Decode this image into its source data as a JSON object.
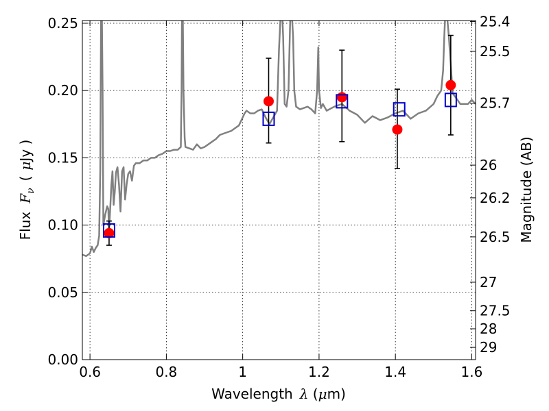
{
  "chart_data": {
    "type": "scatter",
    "xlabel": {
      "prefix": "Wavelength",
      "symbol": "λ",
      "unit_open": " (",
      "unit_mu": "μ",
      "unit_rest": "m)"
    },
    "ylabel": {
      "prefix": "Flux",
      "symbol": "F",
      "subscript": "ν",
      "unit_open": "(",
      "unit_mu": "μ",
      "unit_rest": "Jy )"
    },
    "y2label": "Magnitude (AB)",
    "xlim": [
      0.58,
      1.61
    ],
    "ylim": [
      0.0,
      0.252
    ],
    "x_ticks": [
      0.6,
      0.8,
      1.0,
      1.2,
      1.4,
      1.6
    ],
    "x_tick_labels": [
      "0.6",
      "0.8",
      "1",
      "1.2",
      "1.4",
      "1.6"
    ],
    "y_ticks": [
      0.0,
      0.05,
      0.1,
      0.15,
      0.2,
      0.25
    ],
    "y_tick_labels": [
      "0.00",
      "0.05",
      "0.10",
      "0.15",
      "0.20",
      "0.25"
    ],
    "y2_ticks": [
      25.4,
      25.5,
      25.7,
      26,
      26.2,
      26.5,
      27,
      27.5,
      28,
      29
    ],
    "y2_tick_labels": [
      "25.4",
      "25.5",
      "25.7",
      "26",
      "26.2",
      "26.5",
      "27",
      "27.5",
      "28",
      "29"
    ],
    "grid": true,
    "colors": {
      "model": "#808080",
      "observed": "#ff0000",
      "model_photometry": "#0000cc",
      "errorbar": "#000000"
    },
    "observed": {
      "x": [
        0.65,
        1.068,
        1.26,
        1.405,
        1.545
      ],
      "y": [
        0.094,
        0.192,
        0.195,
        0.171,
        0.204
      ],
      "yerr_low": [
        0.009,
        0.031,
        0.033,
        0.029,
        0.037
      ],
      "yerr_high": [
        0.009,
        0.032,
        0.035,
        0.03,
        0.037
      ]
    },
    "model_photometry": {
      "x": [
        0.65,
        1.068,
        1.26,
        1.41,
        1.545
      ],
      "y": [
        0.096,
        0.179,
        0.192,
        0.186,
        0.193
      ]
    },
    "model_spectrum": {
      "x": [
        0.58,
        0.59,
        0.6,
        0.605,
        0.61,
        0.615,
        0.62,
        0.624,
        0.627,
        0.629,
        0.63,
        0.631,
        0.633,
        0.635,
        0.64,
        0.645,
        0.648,
        0.65,
        0.653,
        0.656,
        0.659,
        0.662,
        0.665,
        0.668,
        0.672,
        0.676,
        0.68,
        0.684,
        0.688,
        0.692,
        0.696,
        0.7,
        0.705,
        0.71,
        0.715,
        0.72,
        0.73,
        0.74,
        0.75,
        0.76,
        0.77,
        0.78,
        0.79,
        0.8,
        0.81,
        0.82,
        0.83,
        0.838,
        0.84,
        0.841,
        0.843,
        0.845,
        0.848,
        0.85,
        0.86,
        0.87,
        0.88,
        0.89,
        0.9,
        0.91,
        0.92,
        0.93,
        0.94,
        0.95,
        0.96,
        0.97,
        0.98,
        0.99,
        1.0,
        1.005,
        1.01,
        1.02,
        1.03,
        1.04,
        1.05,
        1.06,
        1.07,
        1.08,
        1.09,
        1.095,
        1.1,
        1.103,
        1.106,
        1.11,
        1.115,
        1.12,
        1.125,
        1.128,
        1.132,
        1.135,
        1.14,
        1.15,
        1.16,
        1.17,
        1.18,
        1.19,
        1.195,
        1.198,
        1.2,
        1.205,
        1.21,
        1.22,
        1.24,
        1.26,
        1.28,
        1.3,
        1.32,
        1.34,
        1.36,
        1.38,
        1.4,
        1.42,
        1.44,
        1.46,
        1.48,
        1.5,
        1.51,
        1.52,
        1.525,
        1.528,
        1.531,
        1.534,
        1.54,
        1.55,
        1.56,
        1.57,
        1.58,
        1.59,
        1.6,
        1.61
      ],
      "y": [
        0.078,
        0.077,
        0.079,
        0.084,
        0.08,
        0.083,
        0.085,
        0.092,
        0.14,
        0.26,
        0.26,
        0.26,
        0.2,
        0.1,
        0.108,
        0.114,
        0.112,
        0.096,
        0.112,
        0.13,
        0.14,
        0.115,
        0.125,
        0.139,
        0.143,
        0.13,
        0.11,
        0.14,
        0.143,
        0.119,
        0.13,
        0.138,
        0.14,
        0.133,
        0.144,
        0.146,
        0.146,
        0.148,
        0.148,
        0.15,
        0.15,
        0.152,
        0.153,
        0.155,
        0.155,
        0.156,
        0.156,
        0.158,
        0.2,
        0.26,
        0.26,
        0.2,
        0.165,
        0.158,
        0.157,
        0.156,
        0.16,
        0.157,
        0.158,
        0.16,
        0.162,
        0.164,
        0.167,
        0.168,
        0.169,
        0.17,
        0.172,
        0.174,
        0.18,
        0.183,
        0.185,
        0.183,
        0.183,
        0.185,
        0.186,
        0.18,
        0.175,
        0.18,
        0.185,
        0.23,
        0.26,
        0.26,
        0.24,
        0.19,
        0.188,
        0.2,
        0.26,
        0.26,
        0.24,
        0.2,
        0.188,
        0.186,
        0.187,
        0.188,
        0.186,
        0.183,
        0.2,
        0.232,
        0.2,
        0.187,
        0.19,
        0.185,
        0.188,
        0.19,
        0.185,
        0.182,
        0.176,
        0.181,
        0.178,
        0.18,
        0.183,
        0.185,
        0.179,
        0.183,
        0.185,
        0.19,
        0.196,
        0.2,
        0.215,
        0.24,
        0.26,
        0.26,
        0.24,
        0.198,
        0.194,
        0.19,
        0.19,
        0.19,
        0.193,
        0.19
      ]
    }
  }
}
